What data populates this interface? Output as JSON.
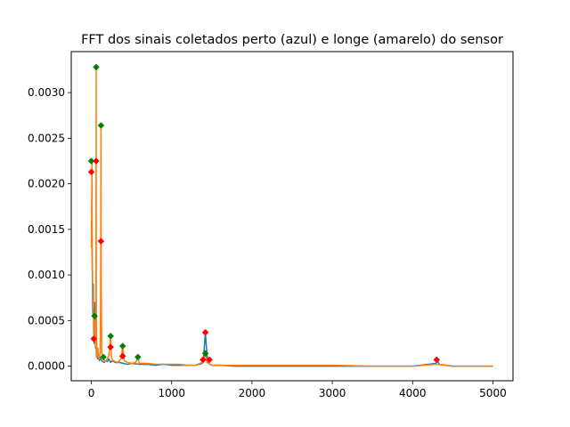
{
  "chart_data": {
    "type": "line",
    "title": "FFT dos sinais coletados perto (azul) e longe (amarelo) do sensor",
    "xlabel": "",
    "ylabel": "",
    "xlim": [
      -250,
      5250
    ],
    "ylim": [
      -0.00016,
      0.00345
    ],
    "grid": false,
    "legend": "none",
    "x_ticks": [
      0,
      1000,
      2000,
      3000,
      4000,
      5000
    ],
    "x_tick_labels": [
      "0",
      "1000",
      "2000",
      "3000",
      "4000",
      "5000"
    ],
    "y_ticks": [
      0.0,
      0.0005,
      0.001,
      0.0015,
      0.002,
      0.0025,
      0.003
    ],
    "y_tick_labels": [
      "0.0000",
      "0.0005",
      "0.0010",
      "0.0015",
      "0.0020",
      "0.0025",
      "0.0030"
    ],
    "series": [
      {
        "color": "#1f77b4",
        "points": [
          [
            0,
            0.00145
          ],
          [
            5,
            0.0016
          ],
          [
            10,
            0.0012
          ],
          [
            15,
            0.0008
          ],
          [
            20,
            0.00055
          ],
          [
            25,
            0.0009
          ],
          [
            30,
            0.0004
          ],
          [
            35,
            0.00025
          ],
          [
            40,
            0.0007
          ],
          [
            45,
            0.00035
          ],
          [
            50,
            0.00045
          ],
          [
            55,
            0.0002
          ],
          [
            60,
            0.00025
          ],
          [
            65,
            0.0001
          ],
          [
            70,
            0.00018
          ],
          [
            80,
            8e-05
          ],
          [
            90,
            0.00012
          ],
          [
            100,
            6e-05
          ],
          [
            110,
            9e-05
          ],
          [
            120,
            7e-05
          ],
          [
            140,
            5e-05
          ],
          [
            160,
            4e-05
          ],
          [
            180,
            6e-05
          ],
          [
            200,
            5e-05
          ],
          [
            220,
            8e-05
          ],
          [
            240,
            4e-05
          ],
          [
            260,
            6e-05
          ],
          [
            300,
            4e-05
          ],
          [
            350,
            4e-05
          ],
          [
            400,
            3e-05
          ],
          [
            450,
            2e-05
          ],
          [
            500,
            3e-05
          ],
          [
            600,
            2e-05
          ],
          [
            700,
            2e-05
          ],
          [
            800,
            1e-05
          ],
          [
            900,
            2e-05
          ],
          [
            1000,
            1e-05
          ],
          [
            1100,
            1e-05
          ],
          [
            1200,
            1e-05
          ],
          [
            1300,
            1e-05
          ],
          [
            1380,
            3e-05
          ],
          [
            1400,
            0.00012
          ],
          [
            1420,
            0.00037
          ],
          [
            1440,
            0.00012
          ],
          [
            1460,
            3e-05
          ],
          [
            1500,
            1e-05
          ],
          [
            1600,
            1e-05
          ],
          [
            1800,
            0.0
          ],
          [
            2000,
            0.0
          ],
          [
            2500,
            0.0
          ],
          [
            3000,
            0.0
          ],
          [
            3500,
            0.0
          ],
          [
            4000,
            0.0
          ],
          [
            4290,
            3e-05
          ],
          [
            4310,
            6e-05
          ],
          [
            4330,
            2e-05
          ],
          [
            4500,
            0.0
          ],
          [
            5000,
            0.0
          ]
        ]
      },
      {
        "color": "#ff7f0e",
        "points": [
          [
            0,
            0.0013
          ],
          [
            4,
            0.0016
          ],
          [
            8,
            0.00225
          ],
          [
            12,
            0.0012
          ],
          [
            16,
            0.0009
          ],
          [
            20,
            0.0008
          ],
          [
            25,
            0.00065
          ],
          [
            30,
            0.0007
          ],
          [
            35,
            0.0004
          ],
          [
            40,
            0.0003
          ],
          [
            45,
            0.0005
          ],
          [
            50,
            0.0002
          ],
          [
            55,
            0.0003
          ],
          [
            58,
            0.0007
          ],
          [
            60,
            0.00328
          ],
          [
            62,
            0.0007
          ],
          [
            65,
            0.0003
          ],
          [
            70,
            0.0001
          ],
          [
            80,
            0.0002
          ],
          [
            90,
            0.0001
          ],
          [
            100,
            8e-05
          ],
          [
            110,
            0.00015
          ],
          [
            116,
            0.0008
          ],
          [
            120,
            0.00264
          ],
          [
            124,
            0.0008
          ],
          [
            130,
            0.00015
          ],
          [
            150,
            8e-05
          ],
          [
            170,
            5e-05
          ],
          [
            200,
            8e-05
          ],
          [
            220,
            0.00012
          ],
          [
            240,
            0.00033
          ],
          [
            250,
            0.0001
          ],
          [
            270,
            6e-05
          ],
          [
            300,
            5e-05
          ],
          [
            330,
            4e-05
          ],
          [
            370,
            8e-05
          ],
          [
            390,
            0.00022
          ],
          [
            410,
            6e-05
          ],
          [
            450,
            4e-05
          ],
          [
            500,
            3e-05
          ],
          [
            550,
            4e-05
          ],
          [
            580,
            9e-05
          ],
          [
            600,
            3e-05
          ],
          [
            700,
            3e-05
          ],
          [
            800,
            2e-05
          ],
          [
            900,
            2e-05
          ],
          [
            1000,
            2e-05
          ],
          [
            1100,
            2e-05
          ],
          [
            1200,
            1e-05
          ],
          [
            1300,
            1e-05
          ],
          [
            1400,
            5e-05
          ],
          [
            1420,
            0.00014
          ],
          [
            1440,
            4e-05
          ],
          [
            1500,
            1e-05
          ],
          [
            1700,
            1e-05
          ],
          [
            2000,
            1e-05
          ],
          [
            2500,
            1e-05
          ],
          [
            3000,
            1e-05
          ],
          [
            3500,
            0.0
          ],
          [
            4000,
            0.0
          ],
          [
            4300,
            2e-05
          ],
          [
            4500,
            0.0
          ],
          [
            5000,
            0.0
          ]
        ]
      }
    ],
    "markers": {
      "green": {
        "color": "#008000",
        "points": [
          [
            0,
            0.00225
          ],
          [
            60,
            0.00328
          ],
          [
            120,
            0.00264
          ],
          [
            240,
            0.00033
          ],
          [
            390,
            0.00022
          ],
          [
            580,
            0.0001
          ],
          [
            150,
            0.0001
          ],
          [
            1420,
            0.00014
          ],
          [
            40,
            0.00055
          ]
        ]
      },
      "red": {
        "color": "#ff0000",
        "points": [
          [
            0,
            0.00213
          ],
          [
            60,
            0.00225
          ],
          [
            120,
            0.00137
          ],
          [
            240,
            0.00021
          ],
          [
            390,
            0.00011
          ],
          [
            1420,
            0.00037
          ],
          [
            1390,
            7e-05
          ],
          [
            1470,
            7e-05
          ],
          [
            4300,
            7e-05
          ],
          [
            30,
            0.0003
          ]
        ]
      }
    }
  }
}
